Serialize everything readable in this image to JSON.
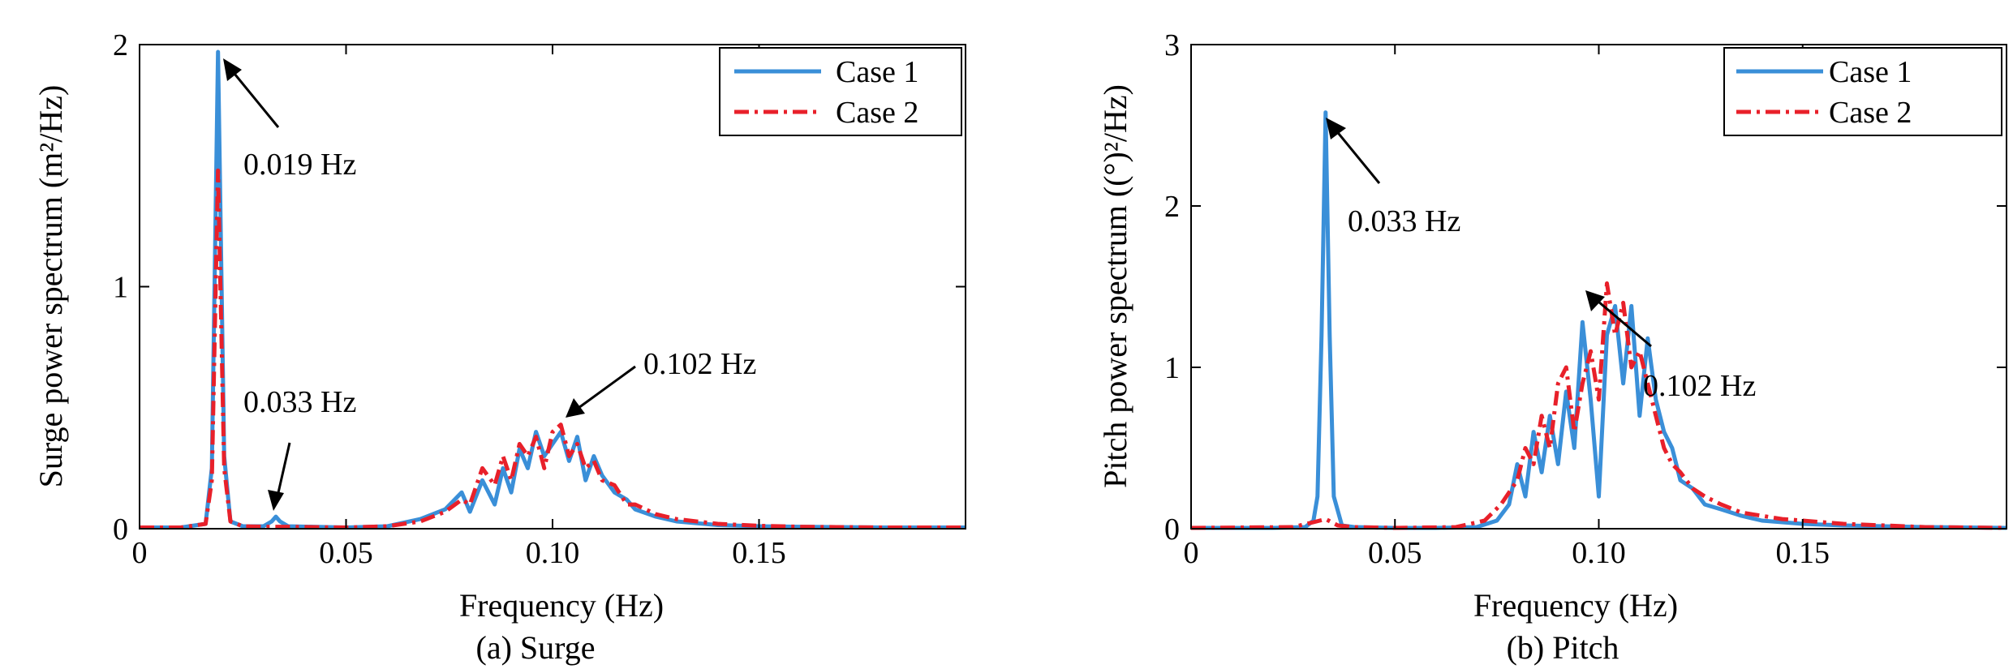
{
  "chart_data": [
    {
      "type": "line",
      "id": "surge",
      "caption": "(a) Surge",
      "xlabel": "Frequency (Hz)",
      "ylabel": "Surge power spectrum (m²/Hz)",
      "xlim": [
        0,
        0.2
      ],
      "ylim": [
        0,
        2
      ],
      "xticks": [
        0,
        0.05,
        0.1,
        0.15
      ],
      "xtick_labels": [
        "0",
        "0.05",
        "0.10",
        "0.15"
      ],
      "yticks": [
        0,
        1,
        2
      ],
      "ytick_labels": [
        "0",
        "1",
        "2"
      ],
      "grid": false,
      "legend_position": "top-right",
      "series": [
        {
          "name": "Case 1",
          "color": "#3a8fd8",
          "style": "solid",
          "points": [
            [
              0,
              0.005
            ],
            [
              0.01,
              0.005
            ],
            [
              0.016,
              0.02
            ],
            [
              0.0175,
              0.25
            ],
            [
              0.019,
              1.97
            ],
            [
              0.0205,
              0.3
            ],
            [
              0.022,
              0.03
            ],
            [
              0.025,
              0.01
            ],
            [
              0.03,
              0.01
            ],
            [
              0.032,
              0.03
            ],
            [
              0.033,
              0.05
            ],
            [
              0.034,
              0.03
            ],
            [
              0.036,
              0.01
            ],
            [
              0.05,
              0.005
            ],
            [
              0.06,
              0.01
            ],
            [
              0.068,
              0.04
            ],
            [
              0.074,
              0.08
            ],
            [
              0.078,
              0.15
            ],
            [
              0.08,
              0.07
            ],
            [
              0.083,
              0.2
            ],
            [
              0.086,
              0.1
            ],
            [
              0.088,
              0.25
            ],
            [
              0.09,
              0.15
            ],
            [
              0.092,
              0.33
            ],
            [
              0.094,
              0.25
            ],
            [
              0.096,
              0.4
            ],
            [
              0.098,
              0.3
            ],
            [
              0.1,
              0.35
            ],
            [
              0.102,
              0.4
            ],
            [
              0.104,
              0.28
            ],
            [
              0.106,
              0.38
            ],
            [
              0.108,
              0.2
            ],
            [
              0.11,
              0.3
            ],
            [
              0.112,
              0.22
            ],
            [
              0.115,
              0.15
            ],
            [
              0.118,
              0.12
            ],
            [
              0.12,
              0.08
            ],
            [
              0.125,
              0.05
            ],
            [
              0.13,
              0.03
            ],
            [
              0.14,
              0.015
            ],
            [
              0.15,
              0.01
            ],
            [
              0.16,
              0.008
            ],
            [
              0.18,
              0.005
            ],
            [
              0.2,
              0.005
            ]
          ]
        },
        {
          "name": "Case 2",
          "color": "#e8202a",
          "style": "dashdot",
          "points": [
            [
              0,
              0.005
            ],
            [
              0.01,
              0.005
            ],
            [
              0.016,
              0.02
            ],
            [
              0.0175,
              0.2
            ],
            [
              0.019,
              1.48
            ],
            [
              0.0205,
              0.25
            ],
            [
              0.022,
              0.03
            ],
            [
              0.025,
              0.01
            ],
            [
              0.03,
              0.008
            ],
            [
              0.035,
              0.008
            ],
            [
              0.05,
              0.005
            ],
            [
              0.06,
              0.01
            ],
            [
              0.068,
              0.03
            ],
            [
              0.074,
              0.07
            ],
            [
              0.078,
              0.12
            ],
            [
              0.08,
              0.1
            ],
            [
              0.083,
              0.25
            ],
            [
              0.086,
              0.18
            ],
            [
              0.088,
              0.3
            ],
            [
              0.09,
              0.2
            ],
            [
              0.092,
              0.35
            ],
            [
              0.094,
              0.3
            ],
            [
              0.096,
              0.38
            ],
            [
              0.098,
              0.25
            ],
            [
              0.1,
              0.4
            ],
            [
              0.102,
              0.43
            ],
            [
              0.104,
              0.3
            ],
            [
              0.106,
              0.35
            ],
            [
              0.108,
              0.25
            ],
            [
              0.11,
              0.28
            ],
            [
              0.112,
              0.2
            ],
            [
              0.115,
              0.18
            ],
            [
              0.118,
              0.1
            ],
            [
              0.12,
              0.1
            ],
            [
              0.125,
              0.06
            ],
            [
              0.13,
              0.04
            ],
            [
              0.14,
              0.02
            ],
            [
              0.15,
              0.012
            ],
            [
              0.16,
              0.008
            ],
            [
              0.18,
              0.005
            ],
            [
              0.2,
              0.005
            ]
          ]
        }
      ],
      "annotations": [
        {
          "text": "0.019 Hz",
          "x": 0.019,
          "y": 1.97
        },
        {
          "text": "0.033 Hz",
          "x": 0.033,
          "y": 0.05
        },
        {
          "text": "0.102 Hz",
          "x": 0.102,
          "y": 0.43
        }
      ]
    },
    {
      "type": "line",
      "id": "pitch",
      "caption": "(b) Pitch",
      "xlabel": "Frequency (Hz)",
      "ylabel": "Pitch power spectrum ((°)²/Hz)",
      "xlim": [
        0,
        0.2
      ],
      "ylim": [
        0,
        3
      ],
      "xticks": [
        0,
        0.05,
        0.1,
        0.15
      ],
      "xtick_labels": [
        "0",
        "0.05",
        "0.10",
        "0.15"
      ],
      "yticks": [
        0,
        1,
        2,
        3
      ],
      "ytick_labels": [
        "0",
        "1",
        "2",
        "3"
      ],
      "grid": false,
      "legend_position": "top-right",
      "series": [
        {
          "name": "Case 1",
          "color": "#3a8fd8",
          "style": "solid",
          "points": [
            [
              0,
              0.005
            ],
            [
              0.02,
              0.005
            ],
            [
              0.028,
              0.01
            ],
            [
              0.03,
              0.05
            ],
            [
              0.031,
              0.2
            ],
            [
              0.032,
              1.2
            ],
            [
              0.033,
              2.58
            ],
            [
              0.034,
              1.2
            ],
            [
              0.035,
              0.2
            ],
            [
              0.037,
              0.02
            ],
            [
              0.04,
              0.01
            ],
            [
              0.05,
              0.005
            ],
            [
              0.06,
              0.005
            ],
            [
              0.07,
              0.01
            ],
            [
              0.075,
              0.05
            ],
            [
              0.078,
              0.15
            ],
            [
              0.08,
              0.4
            ],
            [
              0.082,
              0.2
            ],
            [
              0.084,
              0.6
            ],
            [
              0.086,
              0.35
            ],
            [
              0.088,
              0.7
            ],
            [
              0.09,
              0.4
            ],
            [
              0.092,
              0.85
            ],
            [
              0.094,
              0.5
            ],
            [
              0.096,
              1.28
            ],
            [
              0.098,
              0.8
            ],
            [
              0.1,
              0.2
            ],
            [
              0.102,
              1.2
            ],
            [
              0.104,
              1.38
            ],
            [
              0.106,
              0.9
            ],
            [
              0.108,
              1.38
            ],
            [
              0.11,
              0.7
            ],
            [
              0.112,
              1.18
            ],
            [
              0.114,
              0.8
            ],
            [
              0.116,
              0.6
            ],
            [
              0.118,
              0.5
            ],
            [
              0.12,
              0.3
            ],
            [
              0.123,
              0.25
            ],
            [
              0.126,
              0.15
            ],
            [
              0.13,
              0.12
            ],
            [
              0.135,
              0.08
            ],
            [
              0.14,
              0.05
            ],
            [
              0.15,
              0.03
            ],
            [
              0.16,
              0.02
            ],
            [
              0.18,
              0.01
            ],
            [
              0.2,
              0.005
            ]
          ]
        },
        {
          "name": "Case 2",
          "color": "#e8202a",
          "style": "dashdot",
          "points": [
            [
              0,
              0.005
            ],
            [
              0.025,
              0.01
            ],
            [
              0.03,
              0.04
            ],
            [
              0.033,
              0.06
            ],
            [
              0.036,
              0.02
            ],
            [
              0.04,
              0.01
            ],
            [
              0.05,
              0.005
            ],
            [
              0.065,
              0.01
            ],
            [
              0.072,
              0.05
            ],
            [
              0.076,
              0.15
            ],
            [
              0.08,
              0.3
            ],
            [
              0.082,
              0.5
            ],
            [
              0.084,
              0.4
            ],
            [
              0.086,
              0.7
            ],
            [
              0.088,
              0.5
            ],
            [
              0.09,
              0.9
            ],
            [
              0.092,
              1.0
            ],
            [
              0.094,
              0.6
            ],
            [
              0.096,
              0.9
            ],
            [
              0.098,
              1.1
            ],
            [
              0.1,
              0.8
            ],
            [
              0.102,
              1.52
            ],
            [
              0.104,
              1.2
            ],
            [
              0.106,
              1.4
            ],
            [
              0.108,
              1.0
            ],
            [
              0.11,
              1.1
            ],
            [
              0.112,
              0.9
            ],
            [
              0.114,
              0.7
            ],
            [
              0.116,
              0.5
            ],
            [
              0.118,
              0.4
            ],
            [
              0.12,
              0.35
            ],
            [
              0.123,
              0.25
            ],
            [
              0.126,
              0.2
            ],
            [
              0.13,
              0.15
            ],
            [
              0.135,
              0.1
            ],
            [
              0.14,
              0.08
            ],
            [
              0.145,
              0.06
            ],
            [
              0.15,
              0.05
            ],
            [
              0.16,
              0.03
            ],
            [
              0.18,
              0.01
            ],
            [
              0.2,
              0.005
            ]
          ]
        }
      ],
      "annotations": [
        {
          "text": "0.033 Hz",
          "x": 0.033,
          "y": 2.58
        },
        {
          "text": "0.102 Hz",
          "x": 0.102,
          "y": 1.52
        }
      ]
    }
  ]
}
